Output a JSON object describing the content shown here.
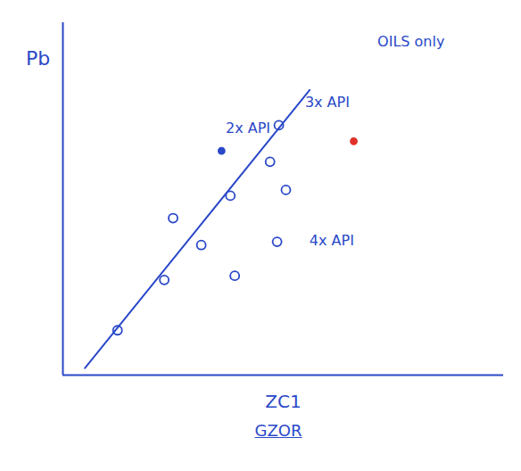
{
  "chart_data": {
    "type": "scatter",
    "x_label": "ZC1",
    "y_label": "Pb",
    "caption": "GZOR",
    "xlim": [
      0,
      100
    ],
    "ylim": [
      0,
      110
    ],
    "xticks": [],
    "yticks": [],
    "tick_labels": false,
    "grid": false,
    "series": [
      {
        "type": "scatter",
        "color": "#2a48c8",
        "marker": "circle",
        "x": [
          12.4,
          23,
          31.4,
          25,
          38,
          47,
          49,
          50.6,
          39,
          48.6
        ],
        "y": [
          14,
          29.7,
          40.6,
          49,
          56,
          66.6,
          78,
          57.8,
          31,
          41.6
        ]
      },
      {
        "type": "scatter",
        "color": "#2a48c8",
        "marker": "dot",
        "x": [
          36
        ],
        "y": [
          70
        ]
      },
      {
        "type": "scatter",
        "color": "#e0302a",
        "marker": "dot",
        "x": [
          66
        ],
        "y": [
          73
        ]
      },
      {
        "type": "line",
        "color": "#2a48c8",
        "line_style": "solid",
        "x": [
          5,
          56
        ],
        "y": [
          2.2,
          89
        ]
      }
    ],
    "annotations": [
      {
        "text": "OILS only",
        "x": 79,
        "y": 104
      },
      {
        "text": "2x API",
        "x": 42,
        "y": 77
      },
      {
        "text": "3x API",
        "x": 60,
        "y": 85
      },
      {
        "text": "4x API",
        "x": 61,
        "y": 42
      }
    ]
  }
}
